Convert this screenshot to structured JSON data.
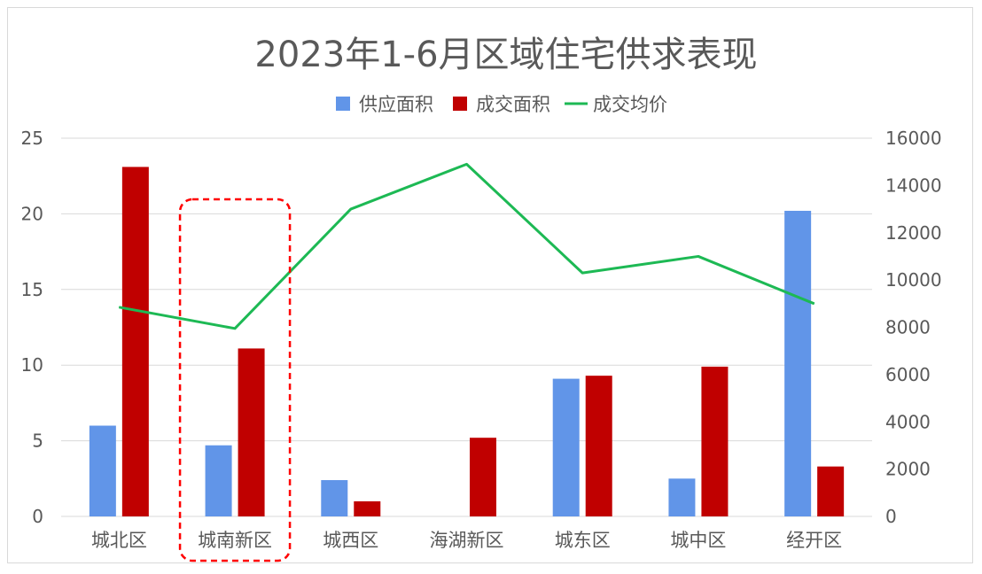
{
  "chart_data": {
    "type": "bar",
    "title": "2023年1-6月区域住宅供求表现",
    "categories": [
      "城北区",
      "城南新区",
      "城西区",
      "海湖新区",
      "城东区",
      "城中区",
      "经开区"
    ],
    "series": [
      {
        "name": "供应面积",
        "type": "bar",
        "axis": "left",
        "color": "#6195e8",
        "values": [
          6.0,
          4.7,
          2.4,
          null,
          9.1,
          2.5,
          20.2
        ]
      },
      {
        "name": "成交面积",
        "type": "bar",
        "axis": "left",
        "color": "#c00000",
        "values": [
          23.1,
          11.1,
          1.0,
          5.2,
          9.3,
          9.9,
          3.3
        ]
      },
      {
        "name": "成交均价",
        "type": "line",
        "axis": "right",
        "color": "#1db954",
        "values": [
          8850,
          7950,
          13000,
          14900,
          10300,
          11000,
          9000
        ]
      }
    ],
    "y_left": {
      "min": 0,
      "max": 25,
      "ticks": [
        "0",
        "5",
        "10",
        "15",
        "20",
        "25"
      ]
    },
    "y_right": {
      "min": 0,
      "max": 16000,
      "ticks": [
        "0",
        "2000",
        "4000",
        "6000",
        "8000",
        "10000",
        "12000",
        "14000",
        "16000"
      ]
    },
    "legend_position": "top",
    "grid": true,
    "highlight_category": "城南新区",
    "highlight_color": "#ff0000"
  }
}
